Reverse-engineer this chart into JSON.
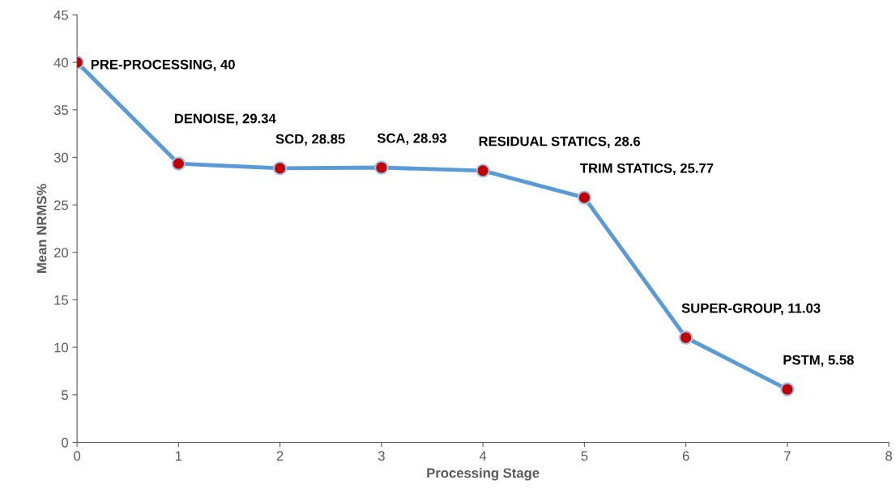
{
  "chart_data": {
    "type": "line",
    "xlabel": "Processing Stage",
    "ylabel": "Mean NRMS%",
    "x": [
      0,
      1,
      2,
      3,
      4,
      5,
      6,
      7
    ],
    "series": [
      {
        "color": "#5b9bd5",
        "values": [
          40,
          29.34,
          28.85,
          28.93,
          28.6,
          25.77,
          11.03,
          5.58
        ]
      }
    ],
    "marker": "circle",
    "line_style": "solid",
    "grid": false,
    "legend": false,
    "xlim": [
      0,
      8
    ],
    "xticks": [
      0,
      1,
      2,
      3,
      4,
      5,
      6,
      7,
      8
    ],
    "ylim": [
      0,
      45
    ],
    "yticks": [
      0,
      5,
      10,
      15,
      20,
      25,
      30,
      35,
      40,
      45
    ],
    "annotations": [
      {
        "text": "PRE-PROCESSING, 40",
        "x": 0,
        "y": 40
      },
      {
        "text": "DENOISE, 29.34",
        "x": 1,
        "y": 29.34
      },
      {
        "text": "SCD, 28.85",
        "x": 2,
        "y": 28.85
      },
      {
        "text": "SCA, 28.93",
        "x": 3,
        "y": 28.93
      },
      {
        "text": "RESIDUAL STATICS, 28.6",
        "x": 4,
        "y": 28.6
      },
      {
        "text": "TRIM STATICS, 25.77",
        "x": 5,
        "y": 25.77
      },
      {
        "text": "SUPER-GROUP, 11.03",
        "x": 6,
        "y": 11.03
      },
      {
        "text": "PSTM, 5.58",
        "x": 7,
        "y": 5.58
      }
    ]
  }
}
